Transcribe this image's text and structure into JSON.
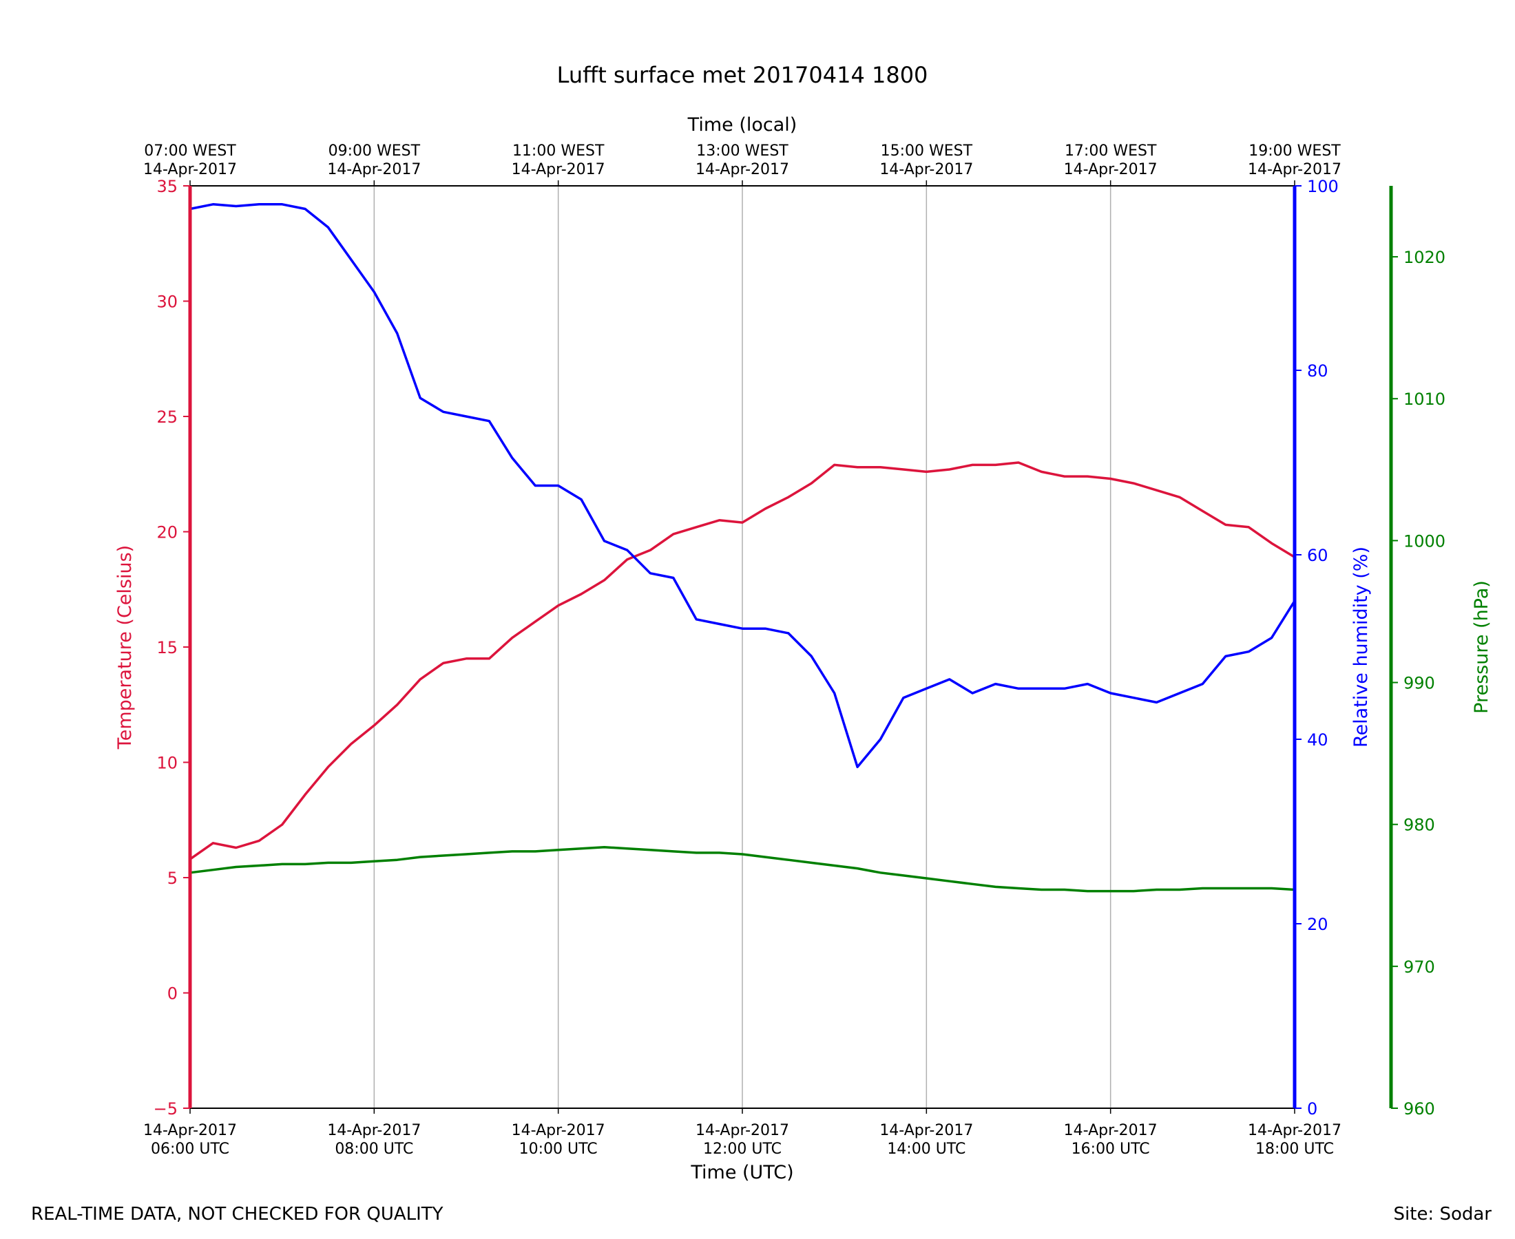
{
  "chart_data": {
    "type": "line",
    "title": "Lufft surface met 20170414 1800",
    "xlabel": "Time (UTC)",
    "x2label": "Time (local)",
    "xlim": [
      "2017-04-14T06:00",
      "2017-04-14T18:00"
    ],
    "x_ticks": [
      {
        "utc": "14-Apr-2017\n06:00 UTC",
        "local": "07:00 WEST\n14-Apr-2017"
      },
      {
        "utc": "14-Apr-2017\n08:00 UTC",
        "local": "09:00 WEST\n14-Apr-2017"
      },
      {
        "utc": "14-Apr-2017\n10:00 UTC",
        "local": "11:00 WEST\n14-Apr-2017"
      },
      {
        "utc": "14-Apr-2017\n12:00 UTC",
        "local": "13:00 WEST\n14-Apr-2017"
      },
      {
        "utc": "14-Apr-2017\n14:00 UTC",
        "local": "15:00 WEST\n14-Apr-2017"
      },
      {
        "utc": "14-Apr-2017\n16:00 UTC",
        "local": "17:00 WEST\n14-Apr-2017"
      },
      {
        "utc": "14-Apr-2017\n18:00 UTC",
        "local": "19:00 WEST\n14-Apr-2017"
      }
    ],
    "grid": "vertical",
    "axes": [
      {
        "name": "temperature",
        "label": "Temperature (Celsius)",
        "color": "#dc143c",
        "ylim": [
          -5,
          35
        ],
        "ticks": [
          -5,
          0,
          5,
          10,
          15,
          20,
          25,
          30,
          35
        ],
        "side": "left"
      },
      {
        "name": "humidity",
        "label": "Relative humidity (%)",
        "color": "#0000ff",
        "ylim": [
          0,
          100
        ],
        "ticks": [
          0,
          20,
          40,
          60,
          80,
          100
        ],
        "side": "right"
      },
      {
        "name": "pressure",
        "label": "Pressure (hPa)",
        "color": "#008000",
        "ylim": [
          960,
          1025
        ],
        "ticks": [
          960,
          970,
          980,
          990,
          1000,
          1010,
          1020
        ],
        "side": "right-outer"
      }
    ],
    "x": [
      "06:00",
      "06:15",
      "06:30",
      "06:45",
      "07:00",
      "07:15",
      "07:30",
      "07:45",
      "08:00",
      "08:15",
      "08:30",
      "08:45",
      "09:00",
      "09:15",
      "09:30",
      "09:45",
      "10:00",
      "10:15",
      "10:30",
      "10:45",
      "11:00",
      "11:15",
      "11:30",
      "11:45",
      "12:00",
      "12:15",
      "12:30",
      "12:45",
      "13:00",
      "13:15",
      "13:30",
      "13:45",
      "14:00",
      "14:15",
      "14:30",
      "14:45",
      "15:00",
      "15:15",
      "15:30",
      "15:45",
      "16:00",
      "16:15",
      "16:30",
      "16:45",
      "17:00",
      "17:15",
      "17:30",
      "17:45",
      "18:00"
    ],
    "series": [
      {
        "axis": "temperature",
        "color": "#dc143c",
        "values": [
          5.8,
          6.5,
          6.3,
          6.6,
          7.3,
          8.6,
          9.8,
          10.8,
          11.6,
          12.5,
          13.6,
          14.3,
          14.5,
          14.5,
          15.4,
          16.1,
          16.8,
          17.3,
          17.9,
          18.8,
          19.2,
          19.9,
          20.2,
          20.5,
          20.4,
          21.0,
          21.5,
          22.1,
          22.9,
          22.8,
          22.8,
          22.7,
          22.6,
          22.7,
          22.9,
          22.9,
          23.0,
          22.6,
          22.4,
          22.4,
          22.3,
          22.1,
          21.8,
          21.5,
          20.9,
          20.3,
          20.2,
          19.5,
          18.9
        ]
      },
      {
        "axis": "humidity",
        "color": "#0000ff",
        "values": [
          97.5,
          98.0,
          97.8,
          98.0,
          98.0,
          97.5,
          95.5,
          92.0,
          88.5,
          84.0,
          77.0,
          75.5,
          75.0,
          74.5,
          70.5,
          67.5,
          67.5,
          66.0,
          61.5,
          60.5,
          58.0,
          57.5,
          53.0,
          52.5,
          52.0,
          52.0,
          51.5,
          49.0,
          45.0,
          37.0,
          40.0,
          44.5,
          45.5,
          46.5,
          45.0,
          46.0,
          45.5,
          45.5,
          45.5,
          46.0,
          45.0,
          44.5,
          44.0,
          45.0,
          46.0,
          49.0,
          49.5,
          51.0,
          55.0
        ]
      },
      {
        "axis": "pressure",
        "color": "#008000",
        "values": [
          976.6,
          976.8,
          977.0,
          977.1,
          977.2,
          977.2,
          977.3,
          977.3,
          977.4,
          977.5,
          977.7,
          977.8,
          977.9,
          978.0,
          978.1,
          978.1,
          978.2,
          978.3,
          978.4,
          978.3,
          978.2,
          978.1,
          978.0,
          978.0,
          977.9,
          977.7,
          977.5,
          977.3,
          977.1,
          976.9,
          976.6,
          976.4,
          976.2,
          976.0,
          975.8,
          975.6,
          975.5,
          975.4,
          975.4,
          975.3,
          975.3,
          975.3,
          975.4,
          975.4,
          975.5,
          975.5,
          975.5,
          975.5,
          975.4
        ]
      }
    ]
  },
  "footer": {
    "left": "REAL-TIME DATA, NOT CHECKED FOR QUALITY",
    "right": "Site: Sodar"
  }
}
